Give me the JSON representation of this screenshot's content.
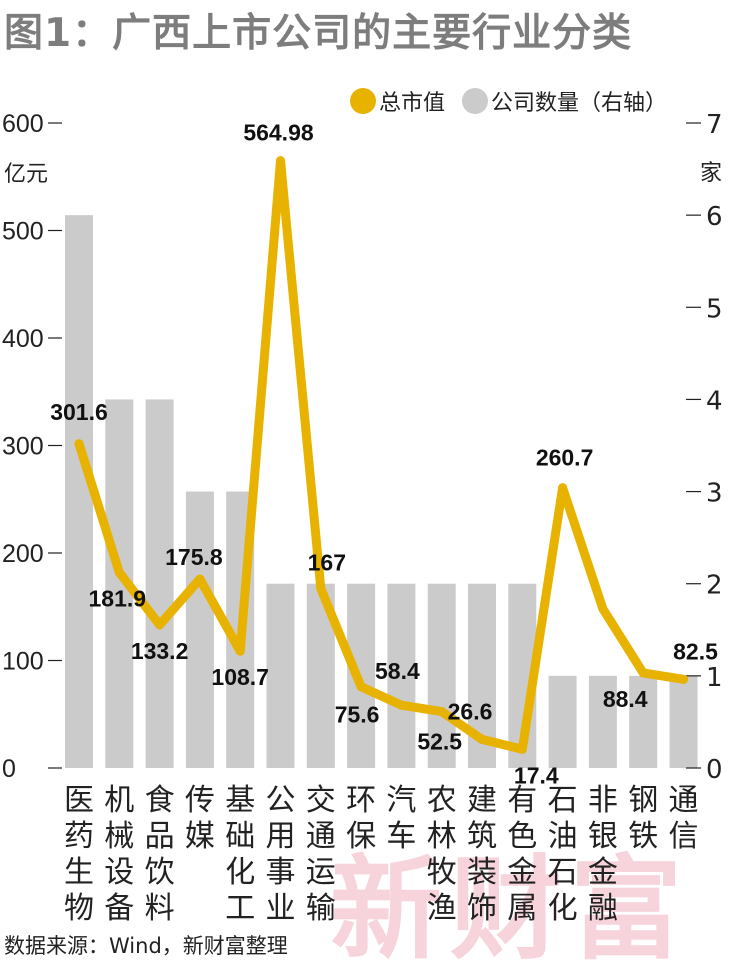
{
  "title": "图1：广西上市公司的主要行业分类",
  "source": "数据来源：Wind，新财富整理",
  "watermark": "新财富",
  "colors": {
    "line": "#e8b200",
    "bar": "#cbcbcb",
    "title": "#7d7d7d",
    "watermark": "#f7d3dc"
  },
  "chart_data": {
    "type": "bar",
    "categories": [
      "医药生物",
      "机械设备",
      "食品饮料",
      "传媒",
      "基础化工",
      "公用事业",
      "交通运输",
      "环保",
      "汽车",
      "农林牧渔",
      "建筑装饰",
      "有色金属",
      "石油石化",
      "非银金融",
      "钢铁",
      "通信"
    ],
    "series": [
      {
        "name": "总市值",
        "type": "line",
        "axis": "left",
        "values": [
          301.6,
          181.9,
          133.2,
          175.8,
          108.7,
          564.98,
          167,
          75.6,
          58.4,
          52.5,
          26.6,
          17.4,
          260.7,
          148,
          88.4,
          82.5
        ]
      },
      {
        "name": "公司数量（右轴）",
        "type": "bar",
        "axis": "right",
        "values": [
          6,
          4,
          4,
          3,
          3,
          2,
          2,
          2,
          2,
          2,
          2,
          2,
          1,
          1,
          1,
          1
        ]
      }
    ],
    "data_labels": [
      "301.6",
      "181.9",
      "133.2",
      "175.8",
      "108.7",
      "564.98",
      "167",
      "75.6",
      "58.4",
      "52.5",
      "26.6",
      "17.4",
      "260.7",
      "",
      "88.4",
      "82.5"
    ],
    "left_axis": {
      "unit": "亿元",
      "ticks": [
        "0",
        "100",
        "200",
        "300",
        "400",
        "500",
        "600"
      ],
      "range": [
        0,
        600
      ]
    },
    "right_axis": {
      "unit": "家",
      "ticks": [
        "0",
        "1",
        "2",
        "3",
        "4",
        "5",
        "6",
        "7"
      ],
      "range": [
        0,
        7
      ]
    },
    "legend_position": "top-right",
    "grid": false
  }
}
